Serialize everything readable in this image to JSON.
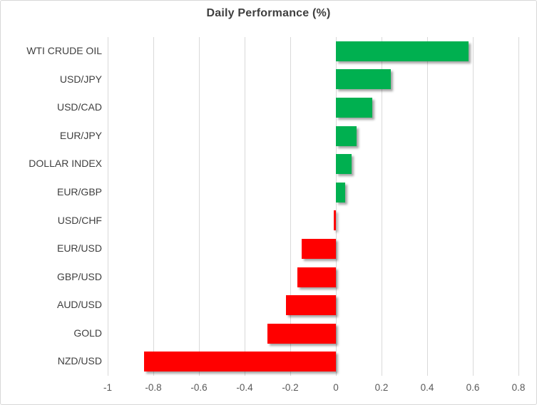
{
  "chart_data": {
    "type": "bar",
    "orientation": "horizontal",
    "title": "Daily Performance (%)",
    "categories": [
      "WTI CRUDE OIL",
      "USD/JPY",
      "USD/CAD",
      "EUR/JPY",
      "DOLLAR INDEX",
      "EUR/GBP",
      "USD/CHF",
      "EUR/USD",
      "GBP/USD",
      "AUD/USD",
      "GOLD",
      "NZD/USD"
    ],
    "values": [
      0.58,
      0.24,
      0.16,
      0.09,
      0.07,
      0.04,
      -0.01,
      -0.15,
      -0.17,
      -0.22,
      -0.3,
      -0.84
    ],
    "xlim": [
      -1,
      0.8
    ],
    "xticks": [
      -1,
      -0.8,
      -0.6,
      -0.4,
      -0.2,
      0,
      0.2,
      0.4,
      0.6,
      0.8
    ],
    "xtick_labels": [
      "-1",
      "-0.8",
      "-0.6",
      "-0.4",
      "-0.2",
      "0",
      "0.2",
      "0.4",
      "0.6",
      "0.8"
    ],
    "grid": "vertical",
    "legend_position": "none",
    "colors": {
      "positive": "#00b050",
      "negative": "#ff0000",
      "gridline": "#d9d9d9",
      "title_text": "#3f3f3f",
      "category_text": "#404040",
      "tick_text": "#595959"
    }
  }
}
